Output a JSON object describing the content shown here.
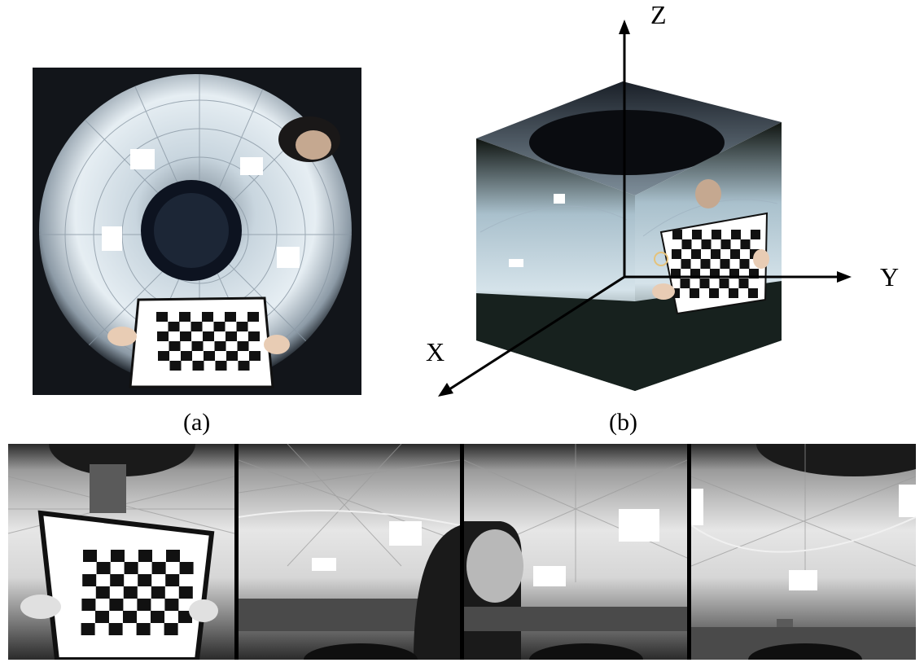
{
  "figure": {
    "caption_a": "(a)",
    "caption_b": "(b)",
    "axes": {
      "x": "X",
      "y": "Y",
      "z": "Z"
    }
  },
  "colors": {
    "fisheye_bg": "#12151a",
    "sky": "#d9e6f0",
    "board_white": "#ffffff",
    "board_black": "#111111"
  }
}
